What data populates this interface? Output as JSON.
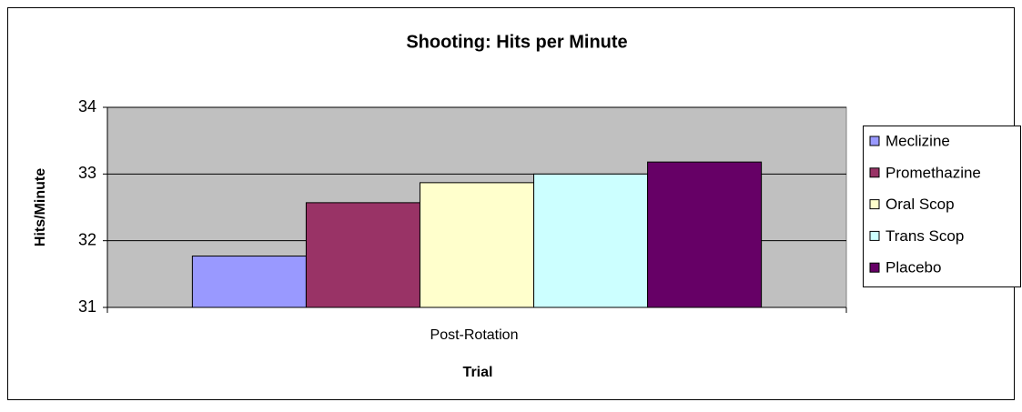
{
  "chart_data": {
    "type": "bar",
    "title": "Shooting: Hits per Minute",
    "x_label": "Trial",
    "y_label": "Hits/Minute",
    "categories": [
      "Post-Rotation"
    ],
    "series": [
      {
        "name": "Meclizine",
        "color": "#9999ff",
        "values": [
          31.77
        ]
      },
      {
        "name": "Promethazine",
        "color": "#993366",
        "values": [
          32.57
        ]
      },
      {
        "name": "Oral Scop",
        "color": "#ffffcc",
        "values": [
          32.87
        ]
      },
      {
        "name": "Trans Scop",
        "color": "#ccffff",
        "values": [
          33.0
        ]
      },
      {
        "name": "Placebo",
        "color": "#660066",
        "values": [
          33.18
        ]
      }
    ],
    "ylim": [
      31,
      34
    ],
    "yticks": [
      31,
      32,
      33,
      34
    ],
    "grid": true,
    "legend": "right"
  }
}
